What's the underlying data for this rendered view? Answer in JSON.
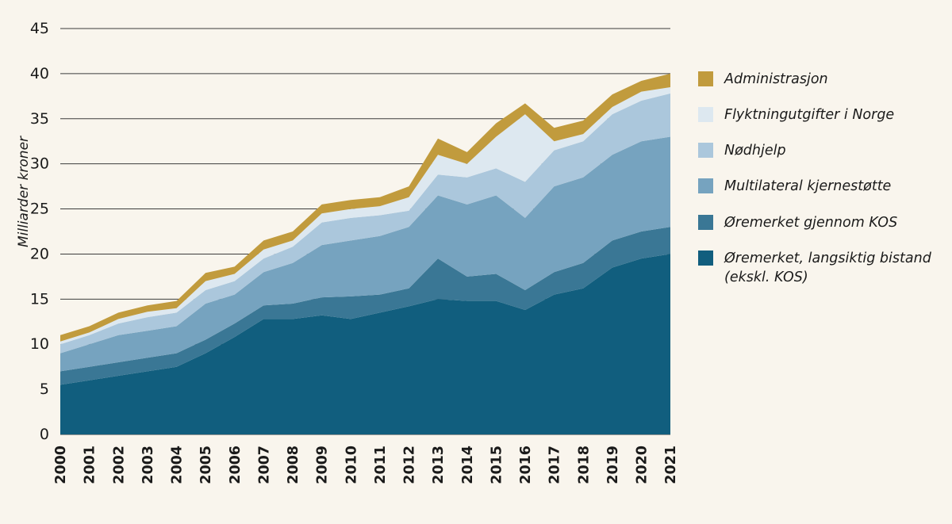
{
  "chart_data": {
    "type": "area",
    "stacked": true,
    "title": "",
    "xlabel": "",
    "ylabel": "Milliarder kroner",
    "ylim": [
      0,
      45
    ],
    "yticks": [
      0,
      5,
      10,
      15,
      20,
      25,
      30,
      35,
      40,
      45
    ],
    "grid": true,
    "legend_position": "right",
    "categories": [
      "2000",
      "2001",
      "2002",
      "2003",
      "2004",
      "2005",
      "2006",
      "2007",
      "2008",
      "2009",
      "2010",
      "2011",
      "2012",
      "2013",
      "2014",
      "2015",
      "2016",
      "2017",
      "2018",
      "2019",
      "2020",
      "2021"
    ],
    "series": [
      {
        "name": "Øremerket, langsiktig bistand\n(ekskl. KOS)",
        "color": "#115e7e",
        "values": [
          5.5,
          6.0,
          6.5,
          7.0,
          7.5,
          9.0,
          10.8,
          12.8,
          12.8,
          13.2,
          12.8,
          13.5,
          14.2,
          15.0,
          14.8,
          14.8,
          13.8,
          15.5,
          16.2,
          18.5,
          19.5,
          20.0
        ]
      },
      {
        "name": "Øremerket gjennom KOS",
        "color": "#3a7795",
        "values": [
          1.5,
          1.5,
          1.5,
          1.5,
          1.5,
          1.5,
          1.5,
          1.5,
          1.7,
          2.0,
          2.5,
          2.0,
          2.0,
          4.5,
          2.7,
          3.0,
          2.2,
          2.5,
          2.8,
          3.0,
          3.0,
          3.0
        ]
      },
      {
        "name": "Multilateral kjernestøtte",
        "color": "#76a3bf",
        "values": [
          2.0,
          2.5,
          3.0,
          3.0,
          3.0,
          4.0,
          3.2,
          3.7,
          4.5,
          5.8,
          6.2,
          6.5,
          6.8,
          7.0,
          8.0,
          8.7,
          8.0,
          9.5,
          9.5,
          9.5,
          10.0,
          10.0
        ]
      },
      {
        "name": "Nødhjelp",
        "color": "#abc7dc",
        "values": [
          1.0,
          1.0,
          1.3,
          1.5,
          1.5,
          1.5,
          1.5,
          1.5,
          1.8,
          2.5,
          2.5,
          2.3,
          1.8,
          2.3,
          3.0,
          3.0,
          4.0,
          4.0,
          4.0,
          4.5,
          4.5,
          4.8
        ]
      },
      {
        "name": "Flyktningutgifter i Norge",
        "color": "#dde8f0",
        "values": [
          0.3,
          0.3,
          0.5,
          0.6,
          0.5,
          1.0,
          0.8,
          1.0,
          0.7,
          1.0,
          1.0,
          1.0,
          1.5,
          2.2,
          1.5,
          3.5,
          7.5,
          1.0,
          0.8,
          0.8,
          1.0,
          0.7
        ]
      },
      {
        "name": "Administrasjon",
        "color": "#c19b3d",
        "values": [
          0.7,
          0.7,
          0.7,
          0.7,
          0.8,
          0.9,
          0.8,
          1.0,
          1.0,
          1.0,
          1.0,
          1.0,
          1.2,
          1.8,
          1.3,
          1.5,
          1.2,
          1.5,
          1.5,
          1.4,
          1.2,
          1.5
        ]
      }
    ]
  }
}
